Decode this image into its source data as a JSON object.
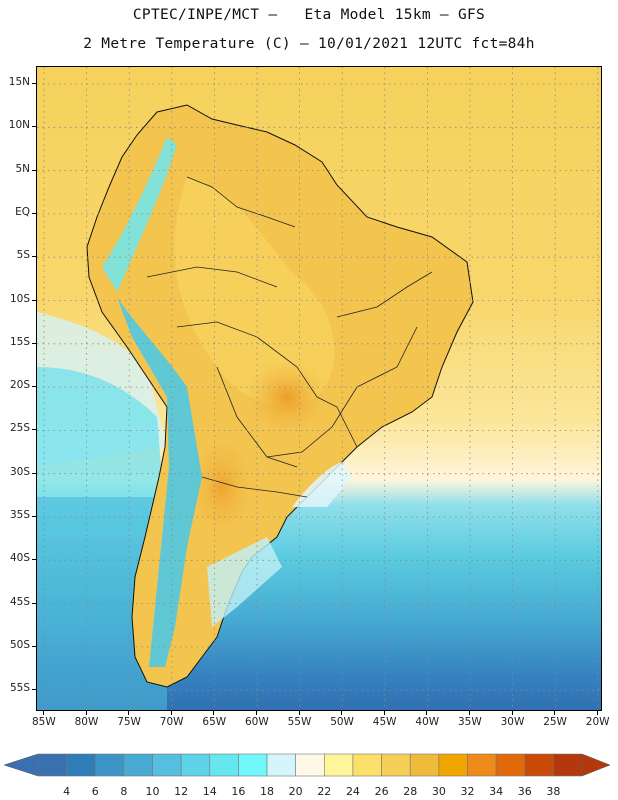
{
  "header": {
    "line1": "CPTEC/INPE/MCT –   Eta Model 15km – GFS",
    "line2": "2 Metre Temperature (C) – 10/01/2021 12UTC fct=84h"
  },
  "map": {
    "lat_labels": [
      "15N",
      "10N",
      "5N",
      "EQ",
      "5S",
      "10S",
      "15S",
      "20S",
      "25S",
      "30S",
      "35S",
      "40S",
      "45S",
      "50S",
      "55S"
    ],
    "lon_labels": [
      "85W",
      "80W",
      "75W",
      "70W",
      "65W",
      "60W",
      "55W",
      "50W",
      "45W",
      "40W",
      "35W",
      "30W",
      "25W",
      "20W"
    ],
    "gridlines": "dotted"
  },
  "legend": {
    "levels": [
      "4",
      "6",
      "8",
      "10",
      "12",
      "14",
      "16",
      "18",
      "20",
      "22",
      "24",
      "26",
      "28",
      "30",
      "32",
      "34",
      "36",
      "38"
    ],
    "colors": [
      "#3a6fb0",
      "#2e7db9",
      "#3d95c7",
      "#49abd4",
      "#55bfe0",
      "#5fd3e8",
      "#66e6ef",
      "#6ff7fa",
      "#d4f5fb",
      "#fff8e6",
      "#fff59a",
      "#fde06a",
      "#f6cf59",
      "#efbb3a",
      "#f0a500",
      "#ec8a1a",
      "#e06a0a",
      "#c94a06",
      "#b3380b"
    ],
    "left_arrow_color": "#3a6fb0",
    "right_arrow_color": "#b3380b"
  }
}
